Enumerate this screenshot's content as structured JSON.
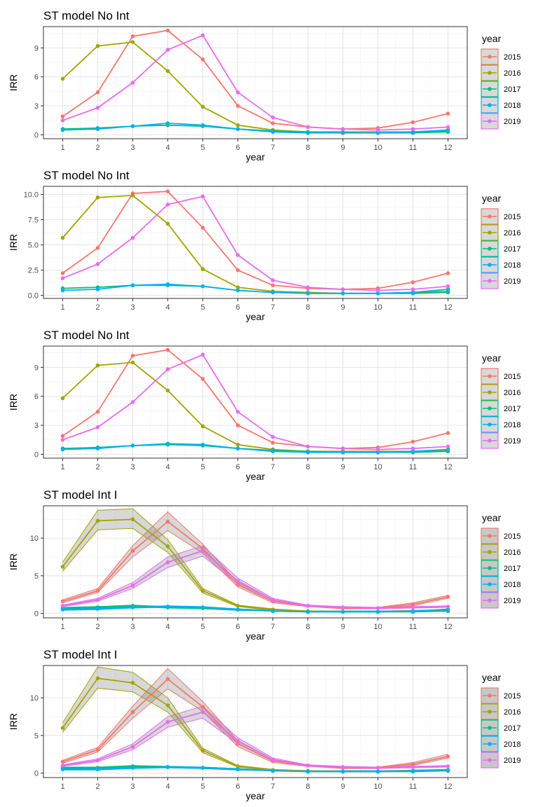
{
  "figure": {
    "legend_title": "year"
  },
  "chart_data": [
    {
      "type": "line",
      "title": "ST model No Int",
      "xlabel": "year",
      "ylabel": "IRR",
      "x": [
        1,
        2,
        3,
        4,
        5,
        6,
        7,
        8,
        9,
        10,
        11,
        12
      ],
      "xticks": [
        "1",
        "2",
        "3",
        "4",
        "5",
        "6",
        "7",
        "8",
        "9",
        "10",
        "11",
        "12"
      ],
      "ylim": [
        -0.4,
        11.2
      ],
      "yticks": [
        0,
        3,
        6,
        9
      ],
      "ytick_labels": [
        "0",
        "3",
        "6",
        "9"
      ],
      "grid": true,
      "legend_position": "right",
      "ribbons": false,
      "series": [
        {
          "name": "2015",
          "color": "#F8766D",
          "values": [
            1.9,
            4.4,
            10.2,
            10.8,
            7.8,
            3.0,
            1.2,
            0.8,
            0.6,
            0.7,
            1.3,
            2.2
          ]
        },
        {
          "name": "2016",
          "color": "#A3A500",
          "values": [
            5.8,
            9.2,
            9.6,
            6.6,
            2.9,
            1.0,
            0.5,
            0.3,
            0.3,
            0.3,
            0.3,
            0.4
          ]
        },
        {
          "name": "2017",
          "color": "#00BF7D",
          "values": [
            0.6,
            0.7,
            0.9,
            1.0,
            0.9,
            0.6,
            0.4,
            0.3,
            0.2,
            0.2,
            0.2,
            0.3
          ]
        },
        {
          "name": "2018",
          "color": "#00B0F6",
          "values": [
            0.5,
            0.6,
            0.9,
            1.2,
            1.0,
            0.6,
            0.3,
            0.2,
            0.2,
            0.2,
            0.3,
            0.5
          ]
        },
        {
          "name": "2019",
          "color": "#E76BF3",
          "values": [
            1.5,
            2.8,
            5.4,
            8.8,
            10.3,
            4.4,
            1.8,
            0.8,
            0.6,
            0.5,
            0.6,
            0.8
          ]
        }
      ]
    },
    {
      "type": "line",
      "title": "ST model No Int",
      "xlabel": "year",
      "ylabel": "IRR",
      "x": [
        1,
        2,
        3,
        4,
        5,
        6,
        7,
        8,
        9,
        10,
        11,
        12
      ],
      "xticks": [
        "1",
        "2",
        "3",
        "4",
        "5",
        "6",
        "7",
        "8",
        "9",
        "10",
        "11",
        "12"
      ],
      "ylim": [
        -0.3,
        10.8
      ],
      "yticks": [
        0,
        2.5,
        5,
        7.5,
        10
      ],
      "ytick_labels": [
        "0.0",
        "2.5",
        "5.0",
        "7.5",
        "10.0"
      ],
      "grid": true,
      "legend_position": "right",
      "ribbons": false,
      "series": [
        {
          "name": "2015",
          "color": "#F8766D",
          "values": [
            2.2,
            4.7,
            10.1,
            10.3,
            6.7,
            2.5,
            1.0,
            0.7,
            0.6,
            0.7,
            1.3,
            2.2
          ]
        },
        {
          "name": "2016",
          "color": "#A3A500",
          "values": [
            5.7,
            9.7,
            9.9,
            7.1,
            2.6,
            0.8,
            0.4,
            0.3,
            0.2,
            0.2,
            0.3,
            0.4
          ]
        },
        {
          "name": "2017",
          "color": "#00BF7D",
          "values": [
            0.7,
            0.8,
            1.0,
            1.0,
            0.9,
            0.5,
            0.3,
            0.2,
            0.2,
            0.2,
            0.2,
            0.3
          ]
        },
        {
          "name": "2018",
          "color": "#00B0F6",
          "values": [
            0.5,
            0.6,
            1.0,
            1.1,
            0.9,
            0.5,
            0.3,
            0.2,
            0.2,
            0.2,
            0.3,
            0.6
          ]
        },
        {
          "name": "2019",
          "color": "#E76BF3",
          "values": [
            1.7,
            3.1,
            5.7,
            9.0,
            9.8,
            4.0,
            1.5,
            0.8,
            0.6,
            0.5,
            0.6,
            0.9
          ]
        }
      ]
    },
    {
      "type": "line",
      "title": "ST model No Int",
      "xlabel": "year",
      "ylabel": "IRR",
      "x": [
        1,
        2,
        3,
        4,
        5,
        6,
        7,
        8,
        9,
        10,
        11,
        12
      ],
      "xticks": [
        "1",
        "2",
        "3",
        "4",
        "5",
        "6",
        "7",
        "8",
        "9",
        "10",
        "11",
        "12"
      ],
      "ylim": [
        -0.4,
        11.2
      ],
      "yticks": [
        0,
        3,
        6,
        9
      ],
      "ytick_labels": [
        "0",
        "3",
        "6",
        "9"
      ],
      "grid": true,
      "legend_position": "right",
      "ribbons": false,
      "series": [
        {
          "name": "2015",
          "color": "#F8766D",
          "values": [
            1.9,
            4.4,
            10.2,
            10.8,
            7.8,
            3.0,
            1.2,
            0.8,
            0.6,
            0.7,
            1.3,
            2.2
          ]
        },
        {
          "name": "2016",
          "color": "#A3A500",
          "values": [
            5.8,
            9.2,
            9.5,
            6.6,
            2.9,
            1.0,
            0.5,
            0.3,
            0.3,
            0.3,
            0.3,
            0.4
          ]
        },
        {
          "name": "2017",
          "color": "#00BF7D",
          "values": [
            0.6,
            0.7,
            0.9,
            1.0,
            0.9,
            0.6,
            0.4,
            0.3,
            0.2,
            0.2,
            0.2,
            0.3
          ]
        },
        {
          "name": "2018",
          "color": "#00B0F6",
          "values": [
            0.5,
            0.6,
            0.9,
            1.1,
            1.0,
            0.6,
            0.3,
            0.2,
            0.2,
            0.2,
            0.3,
            0.5
          ]
        },
        {
          "name": "2019",
          "color": "#E76BF3",
          "values": [
            1.5,
            2.8,
            5.4,
            8.8,
            10.3,
            4.4,
            1.8,
            0.8,
            0.6,
            0.5,
            0.6,
            0.8
          ]
        }
      ]
    },
    {
      "type": "line",
      "title": "ST model Int I",
      "xlabel": "year",
      "ylabel": "IRR",
      "x": [
        1,
        2,
        3,
        4,
        5,
        6,
        7,
        8,
        9,
        10,
        11,
        12
      ],
      "xticks": [
        "1",
        "2",
        "3",
        "4",
        "5",
        "6",
        "7",
        "8",
        "9",
        "10",
        "11",
        "12"
      ],
      "ylim": [
        -0.6,
        14.3
      ],
      "yticks": [
        0,
        5,
        10
      ],
      "ytick_labels": [
        "0",
        "5",
        "10"
      ],
      "grid": true,
      "legend_position": "right",
      "ribbons": true,
      "series": [
        {
          "name": "2015",
          "color": "#F8766D",
          "values": [
            1.6,
            3.0,
            8.3,
            12.2,
            8.6,
            3.8,
            1.6,
            1.0,
            0.7,
            0.7,
            1.2,
            2.2
          ],
          "lower": [
            1.4,
            2.8,
            7.5,
            11.0,
            8.0,
            3.5,
            1.4,
            0.9,
            0.6,
            0.6,
            1.0,
            2.0
          ],
          "upper": [
            1.8,
            3.3,
            9.0,
            13.5,
            9.2,
            4.1,
            1.8,
            1.1,
            0.8,
            0.8,
            1.4,
            2.4
          ]
        },
        {
          "name": "2016",
          "color": "#A3A500",
          "values": [
            6.2,
            12.3,
            12.5,
            8.9,
            3.0,
            1.0,
            0.5,
            0.3,
            0.2,
            0.2,
            0.3,
            0.4
          ],
          "lower": [
            5.6,
            11.1,
            11.3,
            8.1,
            2.7,
            0.9,
            0.4,
            0.2,
            0.2,
            0.2,
            0.3,
            0.4
          ],
          "upper": [
            6.8,
            13.7,
            13.9,
            9.8,
            3.3,
            1.1,
            0.6,
            0.3,
            0.3,
            0.3,
            0.4,
            0.5
          ]
        },
        {
          "name": "2017",
          "color": "#00BF7D",
          "values": [
            0.7,
            0.8,
            1.0,
            0.8,
            0.7,
            0.5,
            0.3,
            0.2,
            0.2,
            0.2,
            0.2,
            0.3
          ],
          "lower": [
            0.6,
            0.7,
            0.9,
            0.7,
            0.6,
            0.4,
            0.3,
            0.2,
            0.2,
            0.2,
            0.2,
            0.3
          ],
          "upper": [
            0.8,
            0.9,
            1.1,
            0.9,
            0.8,
            0.6,
            0.4,
            0.3,
            0.3,
            0.3,
            0.3,
            0.4
          ]
        },
        {
          "name": "2018",
          "color": "#00B0F6",
          "values": [
            0.5,
            0.6,
            0.8,
            0.9,
            0.8,
            0.5,
            0.3,
            0.2,
            0.2,
            0.2,
            0.3,
            0.5
          ],
          "lower": [
            0.4,
            0.5,
            0.7,
            0.8,
            0.7,
            0.4,
            0.3,
            0.2,
            0.2,
            0.2,
            0.2,
            0.4
          ],
          "upper": [
            0.6,
            0.7,
            0.9,
            1.0,
            0.9,
            0.6,
            0.4,
            0.3,
            0.3,
            0.3,
            0.3,
            0.6
          ]
        },
        {
          "name": "2019",
          "color": "#E76BF3",
          "values": [
            1.0,
            1.8,
            3.7,
            6.8,
            8.3,
            4.3,
            1.8,
            1.0,
            0.8,
            0.7,
            0.8,
            0.9
          ],
          "lower": [
            0.9,
            1.6,
            3.3,
            6.1,
            7.6,
            3.9,
            1.6,
            0.9,
            0.7,
            0.6,
            0.7,
            0.8
          ],
          "upper": [
            1.1,
            2.0,
            4.1,
            7.5,
            9.0,
            4.7,
            2.0,
            1.1,
            0.9,
            0.8,
            0.9,
            1.0
          ]
        }
      ]
    },
    {
      "type": "line",
      "title": "ST model Int I",
      "xlabel": "year",
      "ylabel": "IRR",
      "x": [
        1,
        2,
        3,
        4,
        5,
        6,
        7,
        8,
        9,
        10,
        11,
        12
      ],
      "xticks": [
        "1",
        "2",
        "3",
        "4",
        "5",
        "6",
        "7",
        "8",
        "9",
        "10",
        "11",
        "12"
      ],
      "ylim": [
        -0.6,
        14.3
      ],
      "yticks": [
        0,
        5,
        10
      ],
      "ytick_labels": [
        "0",
        "5",
        "10"
      ],
      "grid": true,
      "legend_position": "right",
      "ribbons": true,
      "series": [
        {
          "name": "2015",
          "color": "#F8766D",
          "values": [
            1.5,
            3.1,
            8.1,
            12.5,
            8.8,
            3.9,
            1.6,
            1.0,
            0.7,
            0.7,
            1.2,
            2.2
          ],
          "lower": [
            1.3,
            2.8,
            7.3,
            11.2,
            8.2,
            3.5,
            1.4,
            0.9,
            0.6,
            0.6,
            1.0,
            2.0
          ],
          "upper": [
            1.7,
            3.4,
            8.9,
            13.9,
            9.5,
            4.3,
            1.8,
            1.1,
            0.8,
            0.8,
            1.4,
            2.5
          ]
        },
        {
          "name": "2016",
          "color": "#A3A500",
          "values": [
            6.0,
            12.6,
            12.0,
            9.0,
            3.0,
            0.9,
            0.4,
            0.3,
            0.2,
            0.2,
            0.3,
            0.4
          ],
          "lower": [
            5.4,
            11.3,
            10.8,
            8.1,
            2.7,
            0.8,
            0.4,
            0.2,
            0.2,
            0.2,
            0.3,
            0.4
          ],
          "upper": [
            6.7,
            14.1,
            13.4,
            10.0,
            3.3,
            1.0,
            0.5,
            0.3,
            0.3,
            0.3,
            0.4,
            0.5
          ]
        },
        {
          "name": "2017",
          "color": "#00BF7D",
          "values": [
            0.7,
            0.7,
            0.9,
            0.8,
            0.7,
            0.5,
            0.3,
            0.2,
            0.2,
            0.2,
            0.2,
            0.3
          ],
          "lower": [
            0.6,
            0.6,
            0.8,
            0.7,
            0.6,
            0.4,
            0.3,
            0.2,
            0.2,
            0.2,
            0.2,
            0.3
          ],
          "upper": [
            0.8,
            0.8,
            1.0,
            0.9,
            0.8,
            0.6,
            0.4,
            0.3,
            0.3,
            0.3,
            0.3,
            0.4
          ]
        },
        {
          "name": "2018",
          "color": "#00B0F6",
          "values": [
            0.5,
            0.5,
            0.7,
            0.8,
            0.7,
            0.5,
            0.3,
            0.2,
            0.2,
            0.2,
            0.3,
            0.4
          ],
          "lower": [
            0.4,
            0.4,
            0.6,
            0.7,
            0.6,
            0.4,
            0.3,
            0.2,
            0.2,
            0.2,
            0.2,
            0.3
          ],
          "upper": [
            0.6,
            0.6,
            0.8,
            0.9,
            0.8,
            0.6,
            0.4,
            0.3,
            0.3,
            0.3,
            0.3,
            0.5
          ]
        },
        {
          "name": "2019",
          "color": "#E76BF3",
          "values": [
            1.0,
            1.7,
            3.5,
            6.8,
            8.1,
            4.3,
            1.8,
            1.0,
            0.8,
            0.7,
            0.8,
            0.9
          ],
          "lower": [
            0.9,
            1.5,
            3.1,
            6.1,
            7.3,
            3.9,
            1.6,
            0.9,
            0.7,
            0.6,
            0.7,
            0.8
          ],
          "upper": [
            1.1,
            1.9,
            3.9,
            7.5,
            8.9,
            4.7,
            2.0,
            1.1,
            0.9,
            0.8,
            0.9,
            1.0
          ]
        }
      ]
    }
  ]
}
